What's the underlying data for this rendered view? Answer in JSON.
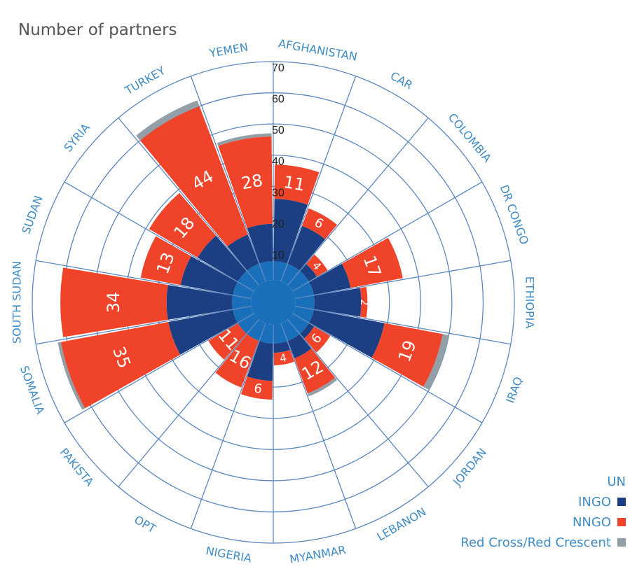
{
  "title": "Number of partners",
  "chart_data": {
    "type": "polar-stacked-bar",
    "rmax": 70,
    "radial_ticks": [
      10,
      20,
      30,
      40,
      50,
      60,
      70
    ],
    "categories": [
      "AFGHANISTAN",
      "CAR",
      "COLOMBIA",
      "DR CONGO",
      "ETHIOPIA",
      "IRAQ",
      "JORDAN",
      "LEBANON",
      "MYANMAR",
      "NIGERIA",
      "OPT",
      "PAKISTA",
      "SOMALIA",
      "SOUTH SUDAN",
      "SUDAN",
      "SYRIA",
      "TURKEY",
      "YEMEN"
    ],
    "series": [
      {
        "name": "UN",
        "color": "#1a6fba",
        "values": [
          6,
          6,
          6,
          6,
          6,
          6,
          6,
          6,
          6,
          6,
          6,
          6,
          6,
          6,
          6,
          6,
          6,
          6
        ]
      },
      {
        "name": "INGO",
        "color": "#1b3f82",
        "values": [
          20,
          13,
          3,
          12,
          15,
          23,
          2,
          6,
          3,
          12,
          0,
          0,
          21,
          21,
          17,
          15,
          10,
          12
        ]
      },
      {
        "name": "NNGO",
        "color": "#f0442a",
        "values": [
          11,
          6,
          4,
          17,
          2,
          19,
          6,
          12,
          4,
          6,
          16,
          11,
          35,
          34,
          13,
          18,
          44,
          28
        ]
      },
      {
        "name": "Red Cross/Red Crescent",
        "color": "#929fa6",
        "values": [
          0,
          0,
          0,
          0,
          0,
          2,
          0,
          1,
          0,
          0,
          0,
          0,
          1,
          0,
          0,
          0,
          2,
          1
        ]
      }
    ],
    "nngo_labels": [
      "11",
      "6",
      "4",
      "17",
      "2",
      "19",
      "6",
      "12",
      "4",
      "6",
      "16",
      "11",
      "35",
      "34",
      "13",
      "18",
      "44",
      "28"
    ]
  },
  "legend": {
    "items": [
      {
        "label": "UN",
        "color": ""
      },
      {
        "label": "INGO",
        "color": "#1b3f82"
      },
      {
        "label": "NNGO",
        "color": "#f0442a"
      },
      {
        "label": "Red Cross/Red Crescent",
        "color": "#929fa6"
      }
    ]
  }
}
